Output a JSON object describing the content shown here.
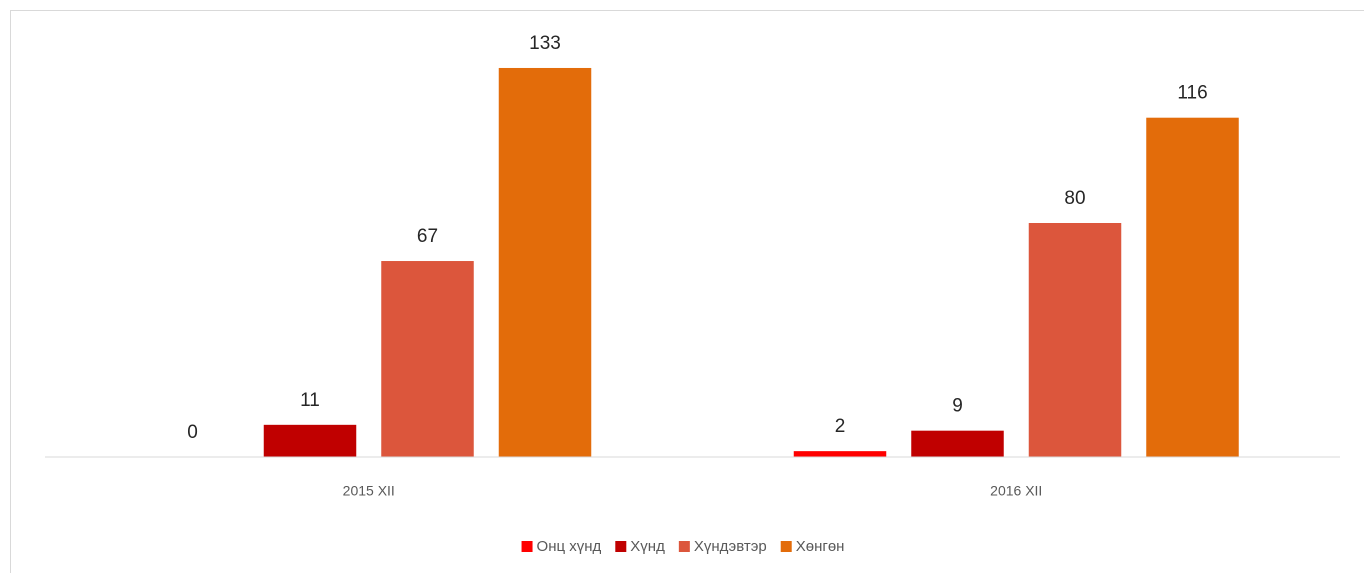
{
  "chart_data": {
    "type": "bar",
    "categories": [
      "2015 XII",
      "2016 XII"
    ],
    "series": [
      {
        "name": "Онц хүнд",
        "color": "#ff0000",
        "values": [
          0,
          2
        ]
      },
      {
        "name": "Хүнд",
        "color": "#c00000",
        "values": [
          11,
          9
        ]
      },
      {
        "name": "Хүндэвтэр",
        "color": "#dc563c",
        "values": [
          67,
          80
        ]
      },
      {
        "name": "Хөнгөн",
        "color": "#e36c0a",
        "values": [
          133,
          116
        ]
      }
    ],
    "ylim": [
      0,
      140
    ],
    "legend": "bottom"
  }
}
